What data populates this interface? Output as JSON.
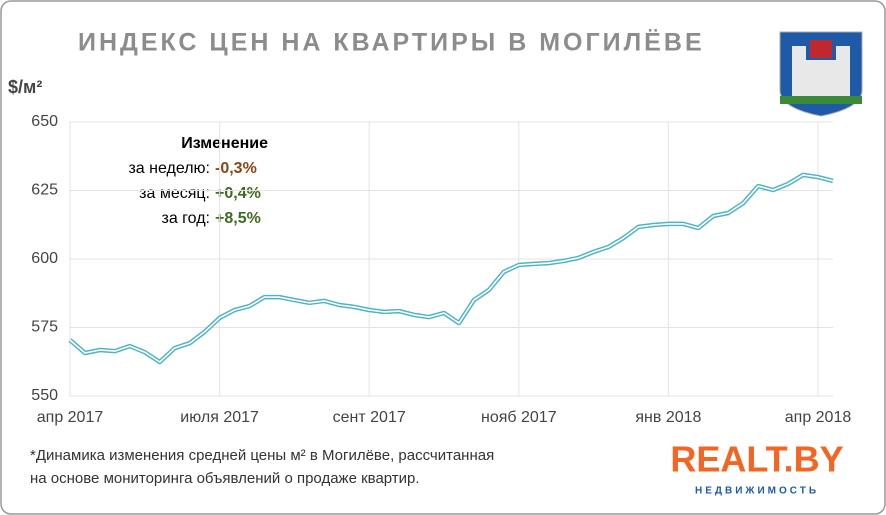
{
  "chart_data": {
    "type": "line",
    "title": "ИНДЕКС ЦЕН НА КВАРТИРЫ В МОГИЛЁВЕ",
    "y_label": "$/м²",
    "x": [
      0,
      1,
      2,
      3,
      4,
      5,
      6,
      7,
      8,
      9,
      10,
      11,
      12,
      13,
      14,
      15,
      16,
      17,
      18,
      19,
      20,
      21,
      22,
      23,
      24,
      25,
      26,
      27,
      28,
      29,
      30,
      31,
      32,
      33,
      34,
      35,
      36,
      37,
      38,
      39,
      40,
      41,
      42,
      43,
      44,
      45,
      46,
      47,
      48,
      49,
      50,
      51
    ],
    "series": [
      {
        "color": "#4fb3c4",
        "values": [
          570.4,
          565.7,
          566.8,
          566.4,
          568.2,
          566,
          562.4,
          567.5,
          569.3,
          573.4,
          578.5,
          581.4,
          582.8,
          586.1,
          586.1,
          585,
          584,
          584.7,
          583.2,
          582.5,
          581.4,
          580.7,
          581,
          579.6,
          578.8,
          580.3,
          576.6,
          585,
          588.7,
          595.3,
          597.8,
          598.2,
          598.5,
          599.3,
          600.4,
          602.6,
          604.4,
          607.7,
          611.7,
          612.4,
          612.8,
          612.8,
          611.3,
          615.7,
          616.8,
          620.4,
          626.6,
          625.2,
          627.4,
          630.7,
          629.9,
          628.5
        ]
      }
    ],
    "xlim": [
      0,
      51
    ],
    "xticks": [
      {
        "value": 0,
        "label": "апр 2017"
      },
      {
        "value": 10,
        "label": "июля 2017"
      },
      {
        "value": 20,
        "label": "сент 2017"
      },
      {
        "value": 30,
        "label": "нояб 2017"
      },
      {
        "value": 40,
        "label": "янв 2018"
      },
      {
        "value": 50,
        "label": "апр 2018"
      }
    ],
    "ylim": [
      550,
      650
    ],
    "yticks": [
      550,
      575,
      600,
      625,
      650
    ],
    "grid": true,
    "change": {
      "title": "Изменение",
      "rows": [
        {
          "label": "за неделю:",
          "value": "-0,3%",
          "color": "#8b4513"
        },
        {
          "label": "за месяц:",
          "value": "+0,4%",
          "color": "#3d6b1f"
        },
        {
          "label": "за год:",
          "value": "+8,5%",
          "color": "#3d6b1f"
        }
      ]
    },
    "footnote": [
      "*Динамика изменения средней цены м² в Могилёве, рассчитанная",
      "на основе мониторинга объявлений о продаже квартир."
    ],
    "logo": {
      "name": "REALT.BY",
      "tagline": "НЕДВИЖИМОСТЬ"
    }
  }
}
